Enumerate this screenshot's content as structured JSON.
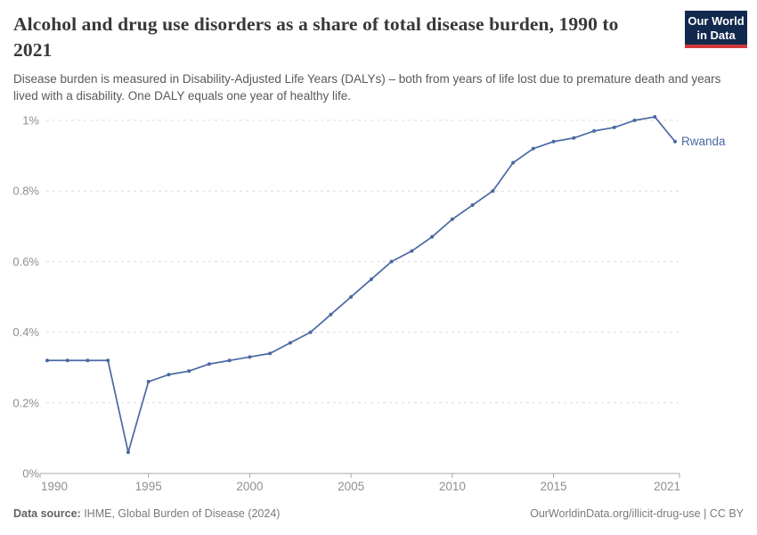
{
  "header": {
    "title": "Alcohol and drug use disorders as a share of total disease burden, 1990 to 2021",
    "subtitle": "Disease burden is measured in Disability-Adjusted Life Years (DALYs) – both from years of life lost due to premature death and years lived with a disability. One DALY equals one year of healthy life.",
    "logo": {
      "line1": "Our World",
      "line2": "in Data",
      "bg_color": "#12294e",
      "accent_color": "#d0393b"
    }
  },
  "chart_data": {
    "type": "line",
    "title": "Alcohol and drug use disorders as a share of total disease burden, 1990 to 2021",
    "x": [
      1990,
      1991,
      1992,
      1993,
      1994,
      1995,
      1996,
      1997,
      1998,
      1999,
      2000,
      2001,
      2002,
      2003,
      2004,
      2005,
      2006,
      2007,
      2008,
      2009,
      2010,
      2011,
      2012,
      2013,
      2014,
      2015,
      2016,
      2017,
      2018,
      2019,
      2020,
      2021
    ],
    "series": [
      {
        "name": "Rwanda",
        "values": [
          0.32,
          0.32,
          0.32,
          0.32,
          0.06,
          0.26,
          0.28,
          0.29,
          0.31,
          0.32,
          0.33,
          0.34,
          0.37,
          0.4,
          0.45,
          0.5,
          0.55,
          0.6,
          0.63,
          0.67,
          0.72,
          0.76,
          0.8,
          0.88,
          0.92,
          0.94,
          0.95,
          0.97,
          0.98,
          1.0,
          1.01,
          0.94
        ]
      }
    ],
    "unit": "%",
    "xlabel": "",
    "ylabel": "",
    "xlim": [
      1990,
      2021
    ],
    "ylim": [
      0,
      1.0
    ],
    "x_ticks": [
      1990,
      1995,
      2000,
      2005,
      2010,
      2015,
      2021
    ],
    "y_ticks": [
      0,
      0.2,
      0.4,
      0.6,
      0.8,
      1.0
    ],
    "y_tick_labels": [
      "0%",
      "0.2%",
      "0.4%",
      "0.6%",
      "0.8%",
      "1%"
    ],
    "grid": "horizontal dashed",
    "legend_position": "end-of-line label",
    "line_color": "#4a68a3",
    "gridline_color": "#dcdcdc",
    "axis_color": "#a8a8a8",
    "tick_label_color": "#8f8f8f",
    "end_label": "Rwanda"
  },
  "footer": {
    "data_source_label": "Data source:",
    "data_source_value": " IHME, Global Burden of Disease (2024)",
    "attribution": "OurWorldinData.org/illicit-drug-use | CC BY"
  }
}
